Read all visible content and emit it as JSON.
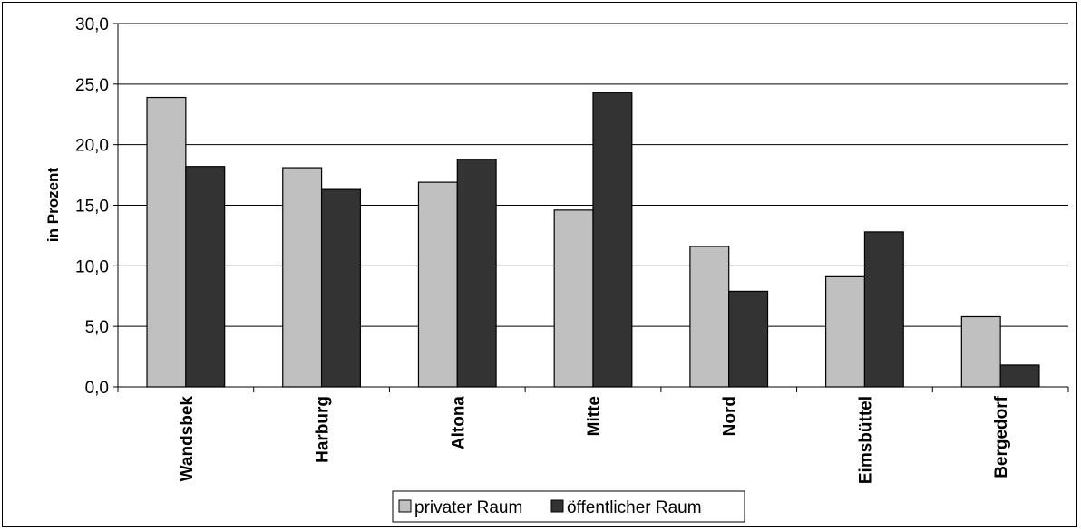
{
  "chart_data": {
    "type": "bar",
    "categories": [
      "Wandsbek",
      "Harburg",
      "Altona",
      "Mitte",
      "Nord",
      "Eimsbüttel",
      "Bergedorf"
    ],
    "series": [
      {
        "name": "privater Raum",
        "values": [
          23.9,
          18.1,
          16.9,
          14.6,
          11.6,
          9.1,
          5.8
        ],
        "color": "#c0c0c0"
      },
      {
        "name": "öffentlicher Raum",
        "values": [
          18.2,
          16.3,
          18.8,
          24.3,
          7.9,
          12.8,
          1.8
        ],
        "color": "#333333"
      }
    ],
    "ylabel": "in Prozent",
    "xlabel": "",
    "ylim": [
      0,
      30
    ],
    "yticks": [
      "0,0",
      "5,0",
      "10,0",
      "15,0",
      "20,0",
      "25,0",
      "30,0"
    ],
    "grid": true,
    "legend_position": "bottom"
  }
}
